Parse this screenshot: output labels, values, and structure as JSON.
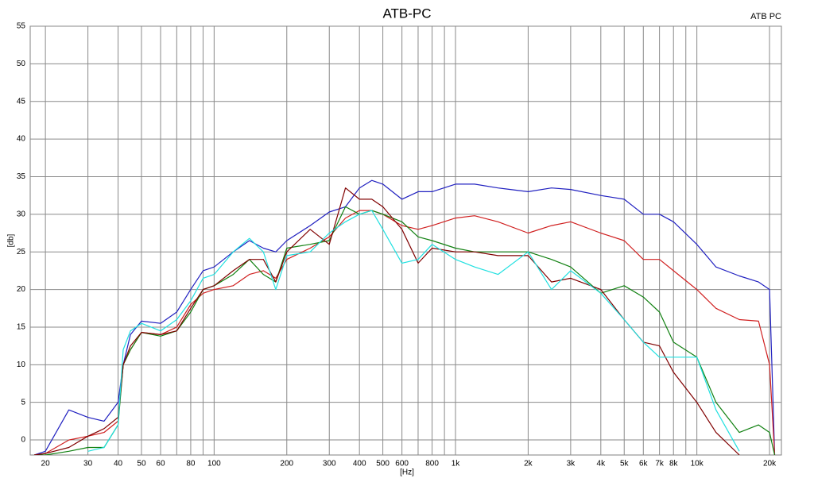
{
  "chart_data": {
    "type": "line",
    "title": "ATB-PC",
    "annotation": "ATB PC",
    "x_label": "[Hz]",
    "y_label": "[db]",
    "xscale": "log",
    "grid": true,
    "xlim": [
      17.3,
      22400
    ],
    "ylim": [
      -2,
      55
    ],
    "yticks": [
      0,
      5,
      10,
      15,
      20,
      25,
      30,
      35,
      40,
      45,
      50,
      55
    ],
    "xticks": [
      20,
      30,
      40,
      50,
      60,
      80,
      100,
      200,
      300,
      400,
      500,
      600,
      800,
      {
        "value": 1000,
        "label": "1k"
      },
      {
        "value": 2000,
        "label": "2k"
      },
      {
        "value": 3000,
        "label": "3k"
      },
      {
        "value": 4000,
        "label": "4k"
      },
      {
        "value": 5000,
        "label": "5k"
      },
      {
        "value": 6000,
        "label": "6k"
      },
      {
        "value": 7000,
        "label": "7k"
      },
      {
        "value": 8000,
        "label": "8k"
      },
      {
        "value": 10000,
        "label": "10k"
      },
      {
        "value": 20000,
        "label": "20k"
      }
    ],
    "xminor": [
      70,
      90,
      700,
      900,
      9000
    ],
    "x": [
      18,
      20,
      25,
      30,
      35,
      40,
      42,
      45,
      50,
      60,
      70,
      80,
      90,
      100,
      120,
      140,
      160,
      180,
      200,
      250,
      300,
      350,
      400,
      450,
      500,
      600,
      700,
      800,
      1000,
      1200,
      1500,
      2000,
      2500,
      3000,
      4000,
      5000,
      6000,
      7000,
      8000,
      10000,
      12000,
      15000,
      18000,
      20000,
      21000
    ],
    "series": [
      {
        "color": "#2020c0",
        "values": [
          -2,
          -1.5,
          4,
          3,
          2.5,
          5,
          10,
          14,
          15.8,
          15.5,
          17,
          20,
          22.5,
          23,
          25,
          26.5,
          25.5,
          25,
          26.5,
          28.5,
          30.3,
          31,
          33.5,
          34.5,
          34,
          32,
          33,
          33,
          34,
          34,
          33.5,
          33,
          33.5,
          33.3,
          32.5,
          32,
          30,
          30,
          29,
          26,
          23,
          21.8,
          21,
          20,
          -2
        ]
      },
      {
        "color": "#d02020",
        "values": [
          -2,
          -1.8,
          0,
          0.5,
          1,
          2.5,
          10,
          12,
          14.3,
          14,
          15,
          18,
          19.5,
          20,
          20.5,
          22,
          22.5,
          21.5,
          24,
          25.5,
          27,
          29.5,
          30.5,
          30.5,
          30,
          28.5,
          28,
          28.5,
          29.5,
          29.8,
          29,
          27.5,
          28.5,
          29,
          27.5,
          26.5,
          24,
          24,
          22.5,
          20,
          17.5,
          16,
          15.8,
          10,
          -2
        ]
      },
      {
        "color": "#108010",
        "values": [
          -2,
          -2,
          -1.5,
          -1,
          -1,
          2,
          10,
          12,
          14.3,
          13.8,
          14.5,
          17,
          20,
          20.5,
          22,
          24,
          22,
          21,
          25.5,
          26,
          26.5,
          31,
          30,
          30.5,
          30,
          29,
          27,
          26.5,
          25.5,
          25,
          25,
          25,
          24,
          23,
          19.5,
          20.5,
          19,
          17,
          13,
          11,
          5,
          1,
          2,
          1,
          -2
        ]
      },
      {
        "color": "#800000",
        "values": [
          -2,
          -1.8,
          -1,
          0.5,
          1.5,
          3,
          10,
          12.5,
          14.3,
          14,
          14.5,
          17.5,
          20,
          20.5,
          22.5,
          24,
          24,
          21,
          25,
          28,
          26,
          33.5,
          32,
          32,
          31,
          28,
          23.5,
          25.5,
          25,
          25,
          24.5,
          24.5,
          21,
          21.5,
          20,
          16,
          13,
          12.5,
          9,
          5,
          1,
          -2,
          null,
          null,
          null
        ]
      },
      {
        "color": "#20e0e0",
        "values": [
          null,
          null,
          null,
          -1.5,
          -1,
          2,
          12,
          14.5,
          15.5,
          14.5,
          16,
          18.5,
          21.5,
          22,
          25,
          26.8,
          25,
          20,
          24.5,
          25,
          27.5,
          29,
          30,
          30.5,
          28,
          23.5,
          24,
          26,
          24,
          23,
          22,
          25,
          20,
          22.5,
          19.5,
          16,
          13,
          11,
          11,
          11,
          4,
          -1.5,
          null,
          null,
          null
        ]
      }
    ]
  }
}
